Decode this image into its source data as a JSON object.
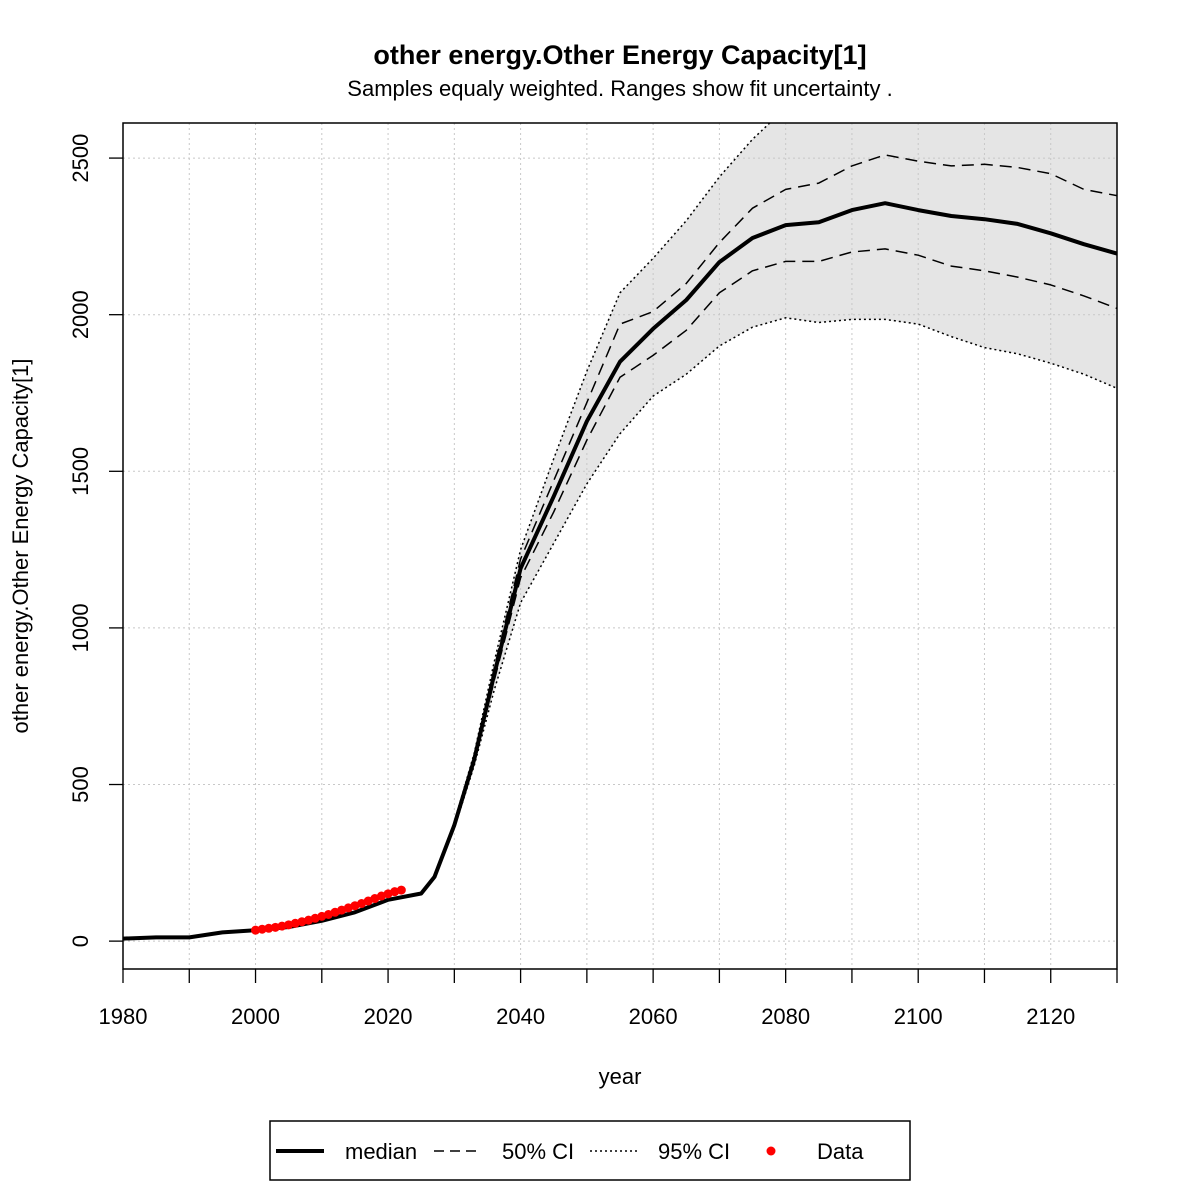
{
  "chart_data": {
    "type": "line",
    "title": "other energy.Other Energy Capacity[1]",
    "subtitle": "Samples equaly weighted. Ranges show  fit uncertainty .",
    "x_label": "year",
    "y_label": "other energy.Other Energy Capacity[1]",
    "x": [
      1980,
      1985,
      1990,
      1995,
      2000,
      2005,
      2010,
      2015,
      2020,
      2025,
      2027,
      2030,
      2033,
      2036,
      2040,
      2045,
      2050,
      2055,
      2060,
      2065,
      2070,
      2075,
      2080,
      2085,
      2090,
      2095,
      2100,
      2105,
      2110,
      2115,
      2120,
      2125,
      2130
    ],
    "series": [
      {
        "name": "median",
        "style": "solid",
        "color": "#000000",
        "values": [
          8,
          12,
          12,
          28,
          35,
          45,
          65,
          92,
          132,
          152,
          205,
          370,
          580,
          850,
          1190,
          1420,
          1660,
          1850,
          1955,
          2047,
          2168,
          2245,
          2286,
          2295,
          2334,
          2356,
          2334,
          2315,
          2305,
          2290,
          2260,
          2225,
          2195
        ]
      },
      {
        "name": "50% CI",
        "style": "dashed",
        "color": "#000000",
        "fill": "#cccccc",
        "lower": [
          null,
          null,
          null,
          null,
          null,
          null,
          null,
          null,
          null,
          152,
          203,
          365,
          570,
          830,
          1160,
          1370,
          1600,
          1800,
          1870,
          1950,
          2070,
          2140,
          2170,
          2170,
          2200,
          2210,
          2190,
          2155,
          2140,
          2120,
          2095,
          2060,
          2020
        ],
        "upper": [
          null,
          null,
          null,
          null,
          null,
          null,
          null,
          null,
          null,
          152,
          207,
          375,
          590,
          870,
          1220,
          1470,
          1720,
          1970,
          2010,
          2100,
          2230,
          2340,
          2400,
          2420,
          2475,
          2510,
          2490,
          2475,
          2480,
          2470,
          2450,
          2400,
          2380
        ]
      },
      {
        "name": "95% CI",
        "style": "dotted",
        "color": "#000000",
        "fill": "#e5e5e5",
        "lower": [
          null,
          null,
          null,
          null,
          null,
          null,
          null,
          null,
          null,
          152,
          200,
          360,
          560,
          800,
          1080,
          1270,
          1460,
          1620,
          1740,
          1810,
          1900,
          1960,
          1990,
          1975,
          1985,
          1985,
          1970,
          1930,
          1895,
          1875,
          1845,
          1810,
          1765
        ],
        "upper": [
          null,
          null,
          null,
          null,
          null,
          null,
          null,
          null,
          null,
          152,
          210,
          380,
          600,
          890,
          1250,
          1540,
          1820,
          2070,
          2180,
          2300,
          2440,
          2560,
          2660,
          2760,
          2850,
          2920,
          2980,
          3000,
          3000,
          3000,
          3000,
          3000,
          3000
        ]
      },
      {
        "name": "Data",
        "style": "points",
        "color": "#ff0000",
        "x": [
          2000,
          2001,
          2002,
          2003,
          2004,
          2005,
          2006,
          2007,
          2008,
          2009,
          2010,
          2011,
          2012,
          2013,
          2014,
          2015,
          2016,
          2017,
          2018,
          2019,
          2020,
          2021,
          2022
        ],
        "values": [
          35,
          38,
          41,
          44,
          48,
          52,
          57,
          62,
          67,
          73,
          79,
          85,
          92,
          99,
          106,
          113,
          120,
          128,
          136,
          144,
          151,
          158,
          163
        ]
      }
    ],
    "xlim": [
      1980,
      2130
    ],
    "ylim": [
      -89,
      2612
    ],
    "xticks": [
      1980,
      2000,
      2020,
      2040,
      2060,
      2080,
      2100,
      2120
    ],
    "xminor_ticks": [
      1990,
      2010,
      2030,
      2050,
      2070,
      2090,
      2110,
      2130
    ],
    "yticks": [
      0,
      500,
      1000,
      1500,
      2000,
      2500
    ],
    "grid": true,
    "legend": "bottom"
  }
}
